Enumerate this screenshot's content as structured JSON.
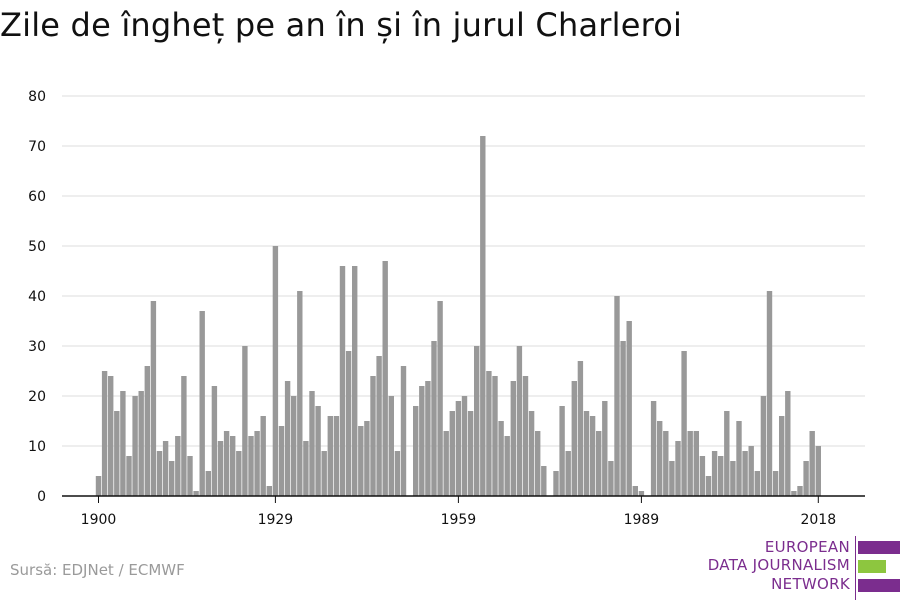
{
  "title": "Zile de îngheț pe an în și în jurul Charleroi",
  "source": "Sursă: EDJNet / ECMWF",
  "logo": {
    "line1": "EUROPEAN",
    "line2": "DATA JOURNALISM",
    "line3": "NETWORK",
    "color_purple": "#7b2d8e",
    "color_green": "#8dc63f"
  },
  "colors": {
    "bar": "#999999",
    "grid": "#dddddd",
    "axis": "#111111"
  },
  "chart_data": {
    "type": "bar",
    "title": "Zile de îngheț pe an în și în jurul Charleroi",
    "xlabel": "",
    "ylabel": "",
    "ylim": [
      0,
      80
    ],
    "yticks": [
      0,
      10,
      20,
      30,
      40,
      50,
      60,
      70,
      80
    ],
    "xticks": [
      1900,
      1929,
      1959,
      1989,
      2018
    ],
    "grid": true,
    "start_year": 1900,
    "x": [
      1900,
      1901,
      1902,
      1903,
      1904,
      1905,
      1906,
      1907,
      1908,
      1909,
      1910,
      1911,
      1912,
      1913,
      1914,
      1915,
      1916,
      1917,
      1918,
      1919,
      1920,
      1921,
      1922,
      1923,
      1924,
      1925,
      1926,
      1927,
      1928,
      1929,
      1930,
      1931,
      1932,
      1933,
      1934,
      1935,
      1936,
      1937,
      1938,
      1939,
      1940,
      1941,
      1942,
      1943,
      1944,
      1945,
      1946,
      1947,
      1948,
      1949,
      1950,
      1951,
      1952,
      1953,
      1954,
      1955,
      1956,
      1957,
      1958,
      1959,
      1960,
      1961,
      1962,
      1963,
      1964,
      1965,
      1966,
      1967,
      1968,
      1969,
      1970,
      1971,
      1972,
      1973,
      1974,
      1975,
      1976,
      1977,
      1978,
      1979,
      1980,
      1981,
      1982,
      1983,
      1984,
      1985,
      1986,
      1987,
      1988,
      1989,
      1990,
      1991,
      1992,
      1993,
      1994,
      1995,
      1996,
      1997,
      1998,
      1999,
      2000,
      2001,
      2002,
      2003,
      2004,
      2005,
      2006,
      2007,
      2008,
      2009,
      2010,
      2011,
      2012,
      2013,
      2014,
      2015,
      2016,
      2017,
      2018
    ],
    "values": [
      4,
      25,
      24,
      17,
      21,
      8,
      20,
      21,
      26,
      39,
      9,
      11,
      7,
      12,
      24,
      8,
      1,
      37,
      5,
      22,
      11,
      13,
      12,
      9,
      30,
      12,
      13,
      16,
      2,
      50,
      14,
      23,
      20,
      41,
      11,
      21,
      18,
      9,
      16,
      16,
      46,
      29,
      46,
      14,
      15,
      24,
      28,
      47,
      20,
      9,
      26,
      0,
      18,
      22,
      23,
      31,
      39,
      13,
      17,
      19,
      20,
      17,
      30,
      72,
      25,
      24,
      15,
      12,
      23,
      30,
      24,
      17,
      13,
      6,
      0,
      5,
      18,
      9,
      23,
      27,
      17,
      16,
      13,
      19,
      7,
      40,
      31,
      35,
      2,
      1,
      0,
      19,
      15,
      13,
      7,
      11,
      29,
      13,
      13,
      8,
      4,
      9,
      8,
      17,
      7,
      15,
      9,
      10,
      5,
      20,
      41,
      5,
      16,
      21,
      1,
      2,
      7,
      13,
      10
    ]
  }
}
